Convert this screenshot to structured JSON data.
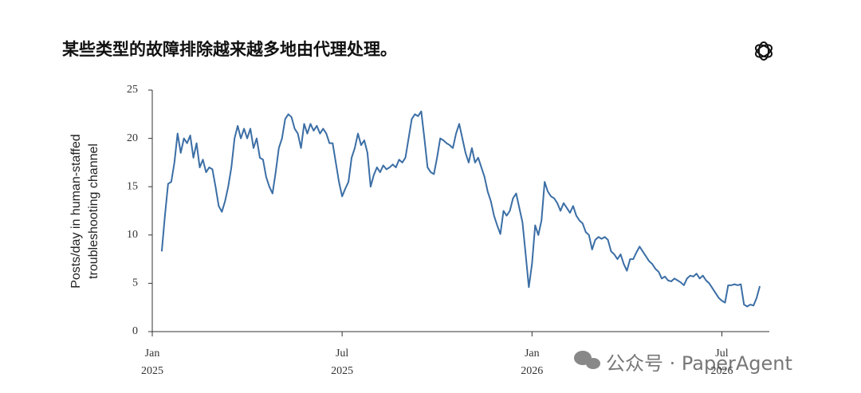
{
  "chart_data": {
    "type": "line",
    "title": "某些类型的故障排除越来越多地由代理处理。",
    "y_label": [
      "Posts/day in human-staffed",
      "troubleshooting channel"
    ],
    "annotations": [
      "公众号 · PaperAgent"
    ],
    "color": "#3b6ea5",
    "x": [
      0.3,
      0.4,
      0.5,
      0.6,
      0.7,
      0.8,
      0.9,
      1.0,
      1.1,
      1.2,
      1.3,
      1.4,
      1.5,
      1.6,
      1.7,
      1.8,
      1.9,
      2.0,
      2.1,
      2.2,
      2.3,
      2.4,
      2.5,
      2.6,
      2.7,
      2.8,
      2.9,
      3.0,
      3.1,
      3.2,
      3.3,
      3.4,
      3.5,
      3.6,
      3.7,
      3.8,
      3.9,
      4.0,
      4.1,
      4.2,
      4.3,
      4.4,
      4.5,
      4.6,
      4.7,
      4.8,
      4.9,
      5.0,
      5.1,
      5.2,
      5.3,
      5.4,
      5.5,
      5.6,
      5.7,
      5.8,
      5.9,
      6.0,
      6.1,
      6.2,
      6.3,
      6.4,
      6.5,
      6.6,
      6.7,
      6.8,
      6.9,
      7.0,
      7.1,
      7.2,
      7.3,
      7.4,
      7.5,
      7.6,
      7.7,
      7.8,
      7.9,
      8.0,
      8.1,
      8.2,
      8.3,
      8.4,
      8.5,
      8.6,
      8.7,
      8.8,
      8.9,
      9.0,
      9.1,
      9.2,
      9.3,
      9.4,
      9.5,
      9.6,
      9.7,
      9.8,
      9.9,
      10.0,
      10.1,
      10.2,
      10.3,
      10.4,
      10.5,
      10.6,
      10.7,
      10.8,
      10.9,
      11.0,
      11.1,
      11.2,
      11.3,
      11.4,
      11.5,
      11.6,
      11.7,
      11.8,
      11.9,
      12.0,
      12.1,
      12.2,
      12.3,
      12.4,
      12.5,
      12.6,
      12.7,
      12.8,
      12.9,
      13.0,
      13.1,
      13.2,
      13.3,
      13.4,
      13.5,
      13.6,
      13.7,
      13.8,
      13.9,
      14.0,
      14.1,
      14.2,
      14.3,
      14.4,
      14.5,
      14.6,
      14.7,
      14.8,
      14.9,
      15.0,
      15.1,
      15.2,
      15.3,
      15.4,
      15.5,
      15.6,
      15.7,
      15.8,
      15.9,
      16.0,
      16.1,
      16.2,
      16.3,
      16.4,
      16.5,
      16.6,
      16.7,
      16.8,
      16.9,
      17.0,
      17.1,
      17.2,
      17.3,
      17.4,
      17.5,
      17.6,
      17.7,
      17.8,
      17.9,
      18.0,
      18.1,
      18.2,
      18.3,
      18.4,
      18.5,
      18.6,
      18.7,
      18.8,
      18.9,
      19.0,
      19.1,
      19.2
    ],
    "values": [
      8.3,
      12,
      15.3,
      15.5,
      17.5,
      20.5,
      18.5,
      20,
      19.5,
      20.3,
      18,
      19.5,
      17,
      17.8,
      16.5,
      17,
      16.8,
      15,
      13,
      12.4,
      13.5,
      15,
      17,
      20,
      21.3,
      20,
      21,
      20,
      21,
      19,
      20,
      18,
      17.8,
      16,
      15,
      14.3,
      16.5,
      19,
      20,
      22,
      22.5,
      22.2,
      21,
      20.5,
      19,
      21.5,
      20.5,
      21.5,
      20.8,
      21.3,
      20.5,
      21,
      20.5,
      19.5,
      19.5,
      17.5,
      15.5,
      14,
      14.8,
      15.5,
      18,
      19,
      20.5,
      19.3,
      19.8,
      18.5,
      15,
      16.2,
      17,
      16.5,
      17.2,
      16.8,
      17,
      17.3,
      17,
      17.8,
      17.5,
      18,
      20,
      22,
      22.5,
      22.3,
      22.8,
      20,
      17,
      16.5,
      16.3,
      18,
      20,
      19.8,
      19.5,
      19.3,
      19,
      20.5,
      21.5,
      20,
      18.5,
      17.5,
      19,
      17.5,
      18,
      17,
      16,
      14.5,
      13.5,
      12,
      11,
      10.1,
      12.5,
      12,
      12.5,
      13.8,
      14.3,
      12.8,
      11.3,
      8,
      4.6,
      7,
      11,
      10,
      11.5,
      15.5,
      14.5,
      14,
      13.8,
      13.3,
      12.5,
      13.3,
      12.8,
      12.3,
      13,
      12,
      11.5,
      11.2,
      10.3,
      10,
      8.5,
      9.5,
      9.8,
      9.6,
      9.8,
      9.5,
      8.3,
      8,
      7.5,
      8,
      7,
      6.3,
      7.5,
      7.5,
      8.2,
      8.8,
      8.3,
      7.8,
      7.3,
      7,
      6.5,
      6.2,
      5.5,
      5.7,
      5.3,
      5.2,
      5.5,
      5.3,
      5.1,
      4.8,
      5.5,
      5.8,
      5.7,
      6,
      5.5,
      5.8,
      5.3,
      5,
      4.5,
      4,
      3.5,
      3.2,
      3,
      4.8,
      4.8,
      4.9,
      4.8,
      4.9,
      2.8,
      2.6,
      2.8,
      2.7,
      3.5,
      4.7
    ],
    "xlim": [
      0,
      19.5
    ],
    "xticks": [
      {
        "value": 0,
        "label": "Jan\n2025"
      },
      {
        "value": 6,
        "label": "Jul\n2025"
      },
      {
        "value": 12,
        "label": "Jan\n2026"
      },
      {
        "value": 18,
        "label": "Jul\n2026"
      }
    ],
    "ylim": [
      0,
      25
    ],
    "yticks": [
      0,
      5,
      10,
      15,
      20,
      25
    ],
    "grid": false
  }
}
